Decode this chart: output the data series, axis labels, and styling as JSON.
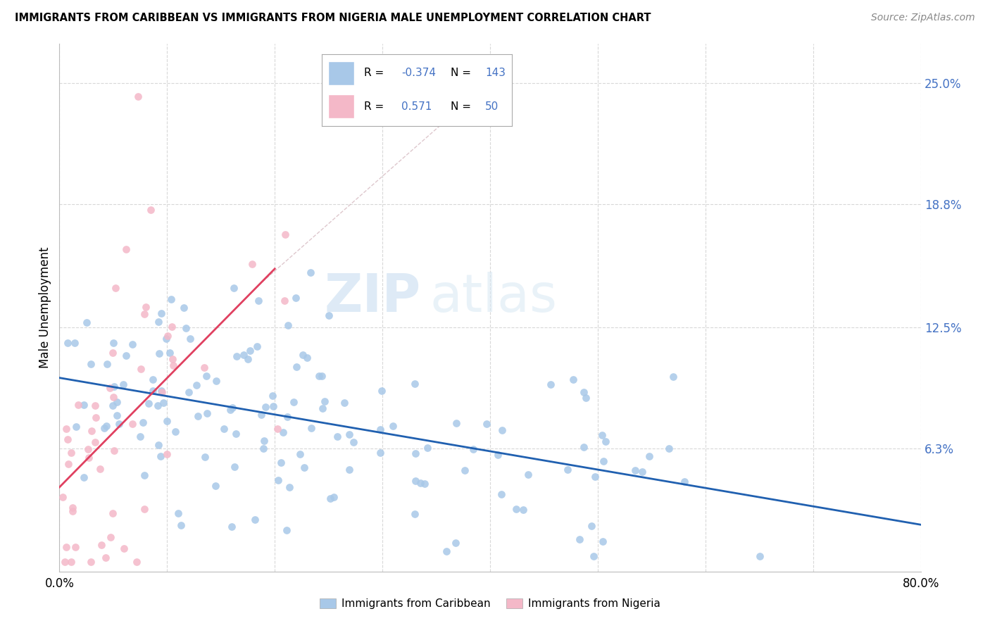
{
  "title": "IMMIGRANTS FROM CARIBBEAN VS IMMIGRANTS FROM NIGERIA MALE UNEMPLOYMENT CORRELATION CHART",
  "source": "Source: ZipAtlas.com",
  "ylabel": "Male Unemployment",
  "y_tick_labels": [
    "6.3%",
    "12.5%",
    "18.8%",
    "25.0%"
  ],
  "y_tick_values": [
    0.063,
    0.125,
    0.188,
    0.25
  ],
  "xlim": [
    0.0,
    0.8
  ],
  "ylim": [
    0.0,
    0.27
  ],
  "watermark_zip": "ZIP",
  "watermark_atlas": "atlas",
  "caribbean_color": "#a8c8e8",
  "caribbean_edge_color": "#7bafd4",
  "nigeria_color": "#f4b8c8",
  "nigeria_edge_color": "#e8809a",
  "trendline_caribbean_color": "#2060b0",
  "trendline_nigeria_color": "#e04060",
  "background_color": "#ffffff",
  "grid_color": "#d8d8d8",
  "right_tick_color": "#4472c4",
  "legend_R_color": "#4472c4",
  "legend_N_color": "#4472c4"
}
